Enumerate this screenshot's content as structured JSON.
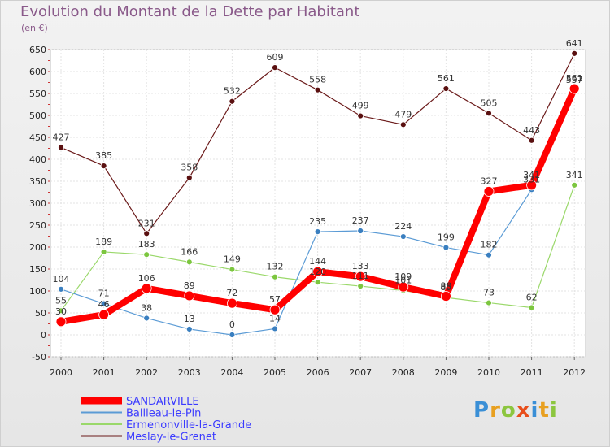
{
  "title": "Evolution du Montant de la Dette par Habitant",
  "subtitle": "(en €)",
  "logo": {
    "text": "Proxiti",
    "letters": [
      {
        "ch": "P",
        "color": "#3a8fd6"
      },
      {
        "ch": "r",
        "color": "#e8a020"
      },
      {
        "ch": "o",
        "color": "#8cc63f"
      },
      {
        "ch": "x",
        "color": "#e84e1b"
      },
      {
        "ch": "i",
        "color": "#3a8fd6"
      },
      {
        "ch": "t",
        "color": "#e8a020"
      },
      {
        "ch": "i",
        "color": "#8cc63f"
      }
    ]
  },
  "chart_data": {
    "type": "line",
    "title": "Evolution du Montant de la Dette par Habitant",
    "subtitle": "(en €)",
    "x": [
      "2000",
      "2001",
      "2002",
      "2003",
      "2004",
      "2005",
      "2006",
      "2007",
      "2008",
      "2009",
      "2010",
      "2011",
      "2012"
    ],
    "ylim": [
      -50,
      650
    ],
    "yticks": [
      -50,
      0,
      50,
      100,
      150,
      200,
      250,
      300,
      350,
      400,
      450,
      500,
      550,
      600,
      650
    ],
    "grid": true,
    "legend_position": "bottom-left",
    "series": [
      {
        "name": "Meslay-le-Grenet",
        "color": "#6b1a1a",
        "point_color": "#5a1010",
        "width": 1.2,
        "values": [
          427,
          385,
          231,
          358,
          532,
          609,
          558,
          499,
          479,
          561,
          505,
          443,
          641
        ]
      },
      {
        "name": "Ermenonville-la-Grande",
        "color": "#9ad86a",
        "point_color": "#7cc63f",
        "width": 1.2,
        "values": [
          55,
          189,
          183,
          166,
          149,
          132,
          120,
          111,
          101,
          85,
          73,
          62,
          341
        ]
      },
      {
        "name": "Bailleau-le-Pin",
        "color": "#5b9bd5",
        "point_color": "#3a7fc0",
        "width": 1.2,
        "values": [
          104,
          71,
          38,
          13,
          0,
          14,
          235,
          237,
          224,
          199,
          182,
          331,
          557
        ]
      },
      {
        "name": "SANDARVILLE",
        "color": "#ff0000",
        "point_color": "#ff0000",
        "width": 8,
        "values": [
          30,
          46,
          106,
          89,
          72,
          57,
          144,
          133,
          109,
          88,
          327,
          341,
          561
        ]
      }
    ]
  }
}
